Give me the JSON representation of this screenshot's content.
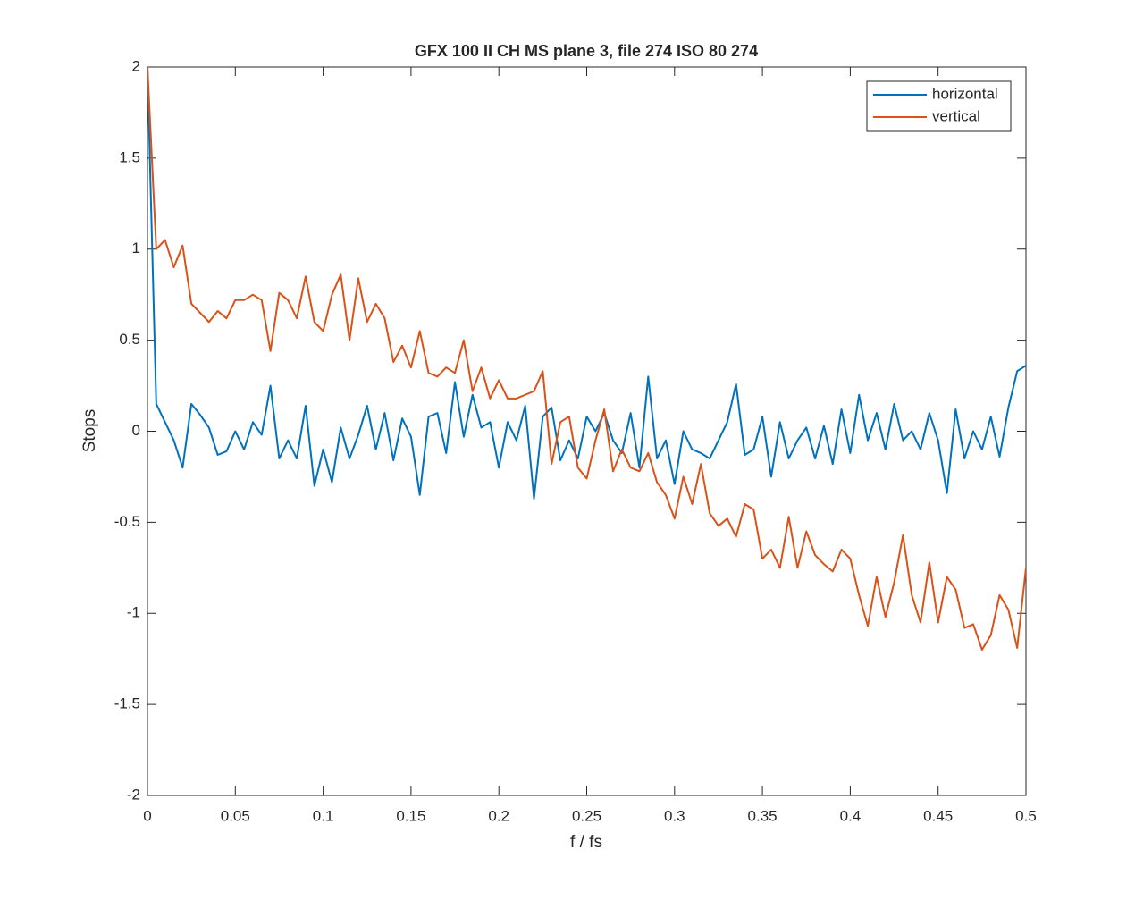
{
  "chart_data": {
    "type": "line",
    "title": "GFX 100 II CH MS plane 3, file 274 ISO 80 274",
    "xlabel": "f / fs",
    "ylabel": "Stops",
    "x": [
      0,
      0.005,
      0.01,
      0.015,
      0.02,
      0.025,
      0.03,
      0.035,
      0.04,
      0.045,
      0.05,
      0.055,
      0.06,
      0.065,
      0.07,
      0.075,
      0.08,
      0.085,
      0.09,
      0.095,
      0.1,
      0.105,
      0.11,
      0.115,
      0.12,
      0.125,
      0.13,
      0.135,
      0.14,
      0.145,
      0.15,
      0.155,
      0.16,
      0.165,
      0.17,
      0.175,
      0.18,
      0.185,
      0.19,
      0.195,
      0.2,
      0.205,
      0.21,
      0.215,
      0.22,
      0.225,
      0.23,
      0.235,
      0.24,
      0.245,
      0.25,
      0.255,
      0.26,
      0.265,
      0.27,
      0.275,
      0.28,
      0.285,
      0.29,
      0.295,
      0.3,
      0.305,
      0.31,
      0.315,
      0.32,
      0.325,
      0.33,
      0.335,
      0.34,
      0.345,
      0.35,
      0.355,
      0.36,
      0.365,
      0.37,
      0.375,
      0.38,
      0.385,
      0.39,
      0.395,
      0.4,
      0.405,
      0.41,
      0.415,
      0.42,
      0.425,
      0.43,
      0.435,
      0.44,
      0.445,
      0.45,
      0.455,
      0.46,
      0.465,
      0.47,
      0.475,
      0.48,
      0.485,
      0.49,
      0.495,
      0.5
    ],
    "series": [
      {
        "name": "horizontal",
        "color": "#0072bd",
        "values": [
          2,
          0.15,
          0.05,
          -0.05,
          -0.2,
          0.15,
          0.09,
          0.02,
          -0.13,
          -0.11,
          0.0,
          -0.1,
          0.05,
          -0.02,
          0.25,
          -0.15,
          -0.05,
          -0.15,
          0.14,
          -0.3,
          -0.1,
          -0.28,
          0.02,
          -0.15,
          -0.02,
          0.14,
          -0.1,
          0.1,
          -0.16,
          0.07,
          -0.03,
          -0.35,
          0.08,
          0.1,
          -0.12,
          0.27,
          -0.03,
          0.2,
          0.02,
          0.05,
          -0.2,
          0.05,
          -0.05,
          0.14,
          -0.37,
          0.08,
          0.13,
          -0.16,
          -0.05,
          -0.15,
          0.08,
          0.0,
          0.1,
          -0.05,
          -0.12,
          0.1,
          -0.2,
          0.3,
          -0.15,
          -0.05,
          -0.29,
          0.0,
          -0.1,
          -0.12,
          -0.15,
          -0.05,
          0.05,
          0.26,
          -0.13,
          -0.1,
          0.08,
          -0.25,
          0.05,
          -0.15,
          -0.05,
          0.02,
          -0.15,
          0.03,
          -0.18,
          0.12,
          -0.12,
          0.2,
          -0.05,
          0.1,
          -0.1,
          0.15,
          -0.05,
          0.0,
          -0.1,
          0.1,
          -0.05,
          -0.34,
          0.12,
          -0.15,
          0.0,
          -0.1,
          0.08,
          -0.14,
          0.13,
          0.33,
          0.36
        ]
      },
      {
        "name": "vertical",
        "color": "#d95319",
        "values": [
          2,
          1.0,
          1.05,
          0.9,
          1.02,
          0.7,
          0.65,
          0.6,
          0.66,
          0.62,
          0.72,
          0.72,
          0.75,
          0.72,
          0.44,
          0.76,
          0.72,
          0.62,
          0.85,
          0.6,
          0.55,
          0.75,
          0.86,
          0.5,
          0.84,
          0.6,
          0.7,
          0.62,
          0.38,
          0.47,
          0.35,
          0.55,
          0.32,
          0.3,
          0.35,
          0.32,
          0.5,
          0.22,
          0.35,
          0.18,
          0.28,
          0.18,
          0.18,
          0.2,
          0.22,
          0.33,
          -0.18,
          0.05,
          0.08,
          -0.2,
          -0.26,
          -0.05,
          0.12,
          -0.22,
          -0.1,
          -0.2,
          -0.22,
          -0.12,
          -0.28,
          -0.35,
          -0.48,
          -0.25,
          -0.4,
          -0.18,
          -0.45,
          -0.52,
          -0.48,
          -0.58,
          -0.4,
          -0.43,
          -0.7,
          -0.65,
          -0.75,
          -0.47,
          -0.75,
          -0.55,
          -0.68,
          -0.73,
          -0.77,
          -0.65,
          -0.7,
          -0.9,
          -1.07,
          -0.8,
          -1.02,
          -0.83,
          -0.57,
          -0.9,
          -1.05,
          -0.72,
          -1.05,
          -0.8,
          -0.87,
          -1.08,
          -1.06,
          -1.2,
          -1.12,
          -0.9,
          -0.98,
          -1.19,
          -0.75
        ]
      }
    ],
    "xlim": [
      0,
      0.5
    ],
    "xticks": [
      0,
      0.05,
      0.1,
      0.15,
      0.2,
      0.25,
      0.3,
      0.35,
      0.4,
      0.45,
      0.5
    ],
    "ylim": [
      -2,
      2
    ],
    "yticks": [
      -2,
      -1.5,
      -1,
      -0.5,
      0,
      0.5,
      1,
      1.5,
      2
    ],
    "grid": false,
    "legend": "northeast"
  }
}
